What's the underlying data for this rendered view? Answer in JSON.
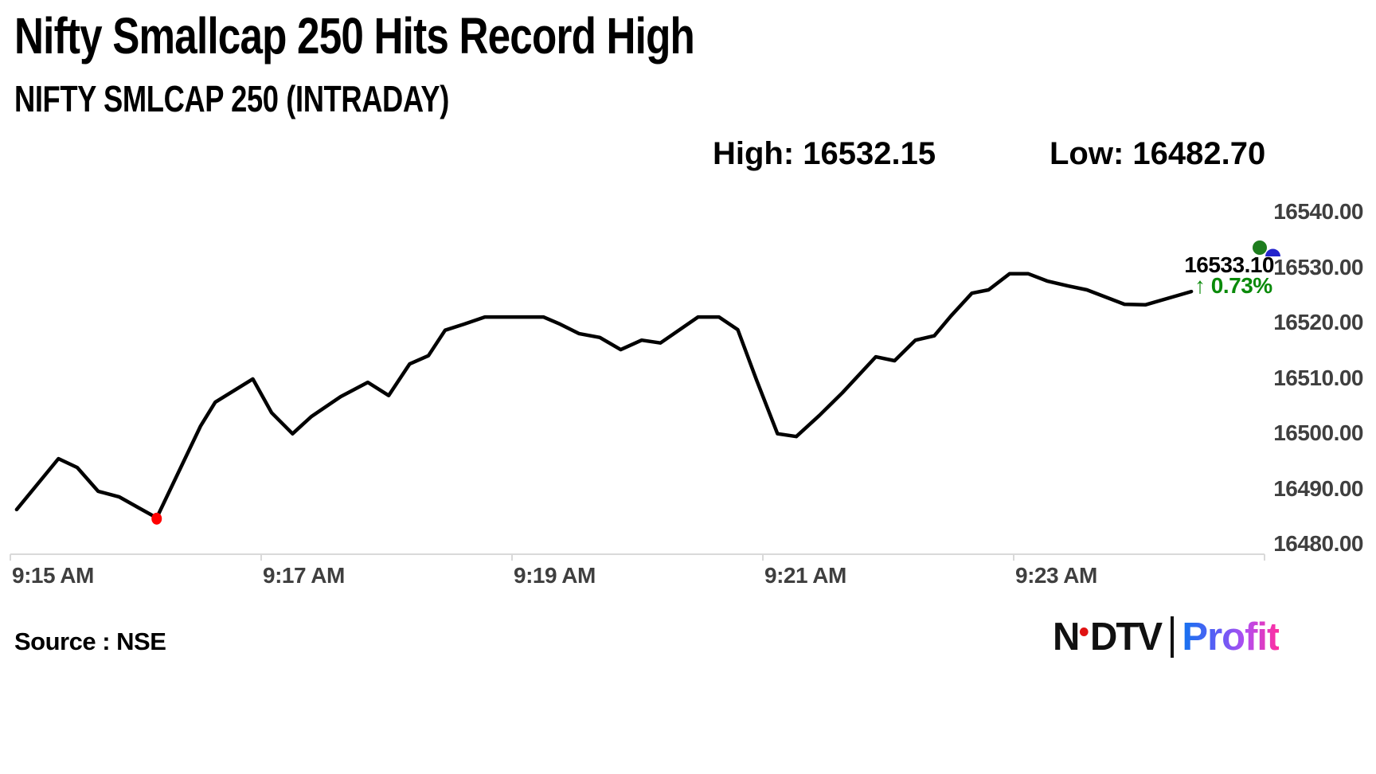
{
  "header": {
    "title": "Nifty Smallcap 250 Hits Record High",
    "subtitle": "NIFTY SMLCAP 250 (INTRADAY)",
    "high_label": "High: 16532.15",
    "low_label": "Low: 16482.70"
  },
  "annotations": {
    "last_price": "16533.10",
    "change_label": "↑ 0.73%"
  },
  "footer": {
    "source": "Source : NSE",
    "logo_n": "N",
    "logo_dtv": "DTV",
    "logo_profit": "Profit"
  },
  "colors": {
    "line": "#000000",
    "axis": "#d9d9d9",
    "tick_text": "#3f3f3f",
    "low_marker": "#ff0000",
    "gain_green": "#0a8a0a",
    "badge_green": "#1e7d1e",
    "badge_blue": "#2323cc",
    "profit_gradient": [
      "#1473ef",
      "#5f5cf5",
      "#b44df0",
      "#ff2d9e"
    ]
  },
  "chart_data": {
    "type": "line",
    "title": "NIFTY SMLCAP 250 (INTRADAY)",
    "high": 16532.15,
    "low": 16482.7,
    "last_price": 16533.1,
    "change_percent": "0.73%",
    "grid": false,
    "legend": false,
    "x_axis": {
      "labels": [
        "9:15 AM",
        "9:17 AM",
        "9:19 AM",
        "9:21 AM",
        "9:23 AM"
      ],
      "interval_minutes": 2,
      "t_unit": "seconds after 9:15 AM"
    },
    "y_axis": {
      "ticks": [
        16540,
        16530,
        16520,
        16510,
        16500,
        16490,
        16480
      ],
      "tick_labels": [
        "16540.00",
        "16530.00",
        "16520.00",
        "16510.00",
        "16500.00",
        "16490.00",
        "16480.00"
      ],
      "min": 16470,
      "max": 16545,
      "side": "right"
    },
    "series": [
      {
        "name": "NIFTY SMLCAP 250",
        "color": "#000000",
        "points": [
          [
            3,
            16486.2
          ],
          [
            23,
            16495.4
          ],
          [
            32,
            16493.8
          ],
          [
            42,
            16489.5
          ],
          [
            52,
            16488.5
          ],
          [
            61,
            16486.6
          ],
          [
            70,
            16484.7
          ],
          [
            91,
            16501.3
          ],
          [
            98,
            16505.6
          ],
          [
            116,
            16509.8
          ],
          [
            125,
            16503.7
          ],
          [
            135,
            16499.9
          ],
          [
            144,
            16503.0
          ],
          [
            158,
            16506.6
          ],
          [
            171,
            16509.2
          ],
          [
            181,
            16506.8
          ],
          [
            191,
            16512.5
          ],
          [
            200,
            16514.0
          ],
          [
            208,
            16518.6
          ],
          [
            217,
            16519.7
          ],
          [
            227,
            16521.0
          ],
          [
            255,
            16521.0
          ],
          [
            263,
            16519.7
          ],
          [
            272,
            16518.0
          ],
          [
            282,
            16517.3
          ],
          [
            292,
            16515.1
          ],
          [
            302,
            16516.8
          ],
          [
            311,
            16516.3
          ],
          [
            329,
            16521.0
          ],
          [
            339,
            16521.0
          ],
          [
            348,
            16518.7
          ],
          [
            357,
            16509.6
          ],
          [
            367,
            16499.9
          ],
          [
            376,
            16499.4
          ],
          [
            387,
            16503.2
          ],
          [
            398,
            16507.3
          ],
          [
            414,
            16513.8
          ],
          [
            423,
            16513.1
          ],
          [
            433,
            16516.8
          ],
          [
            442,
            16517.6
          ],
          [
            450,
            16521.2
          ],
          [
            460,
            16525.3
          ],
          [
            468,
            16525.9
          ],
          [
            478,
            16528.8
          ],
          [
            487,
            16528.8
          ],
          [
            496,
            16527.5
          ],
          [
            506,
            16526.6
          ],
          [
            515,
            16525.9
          ],
          [
            533,
            16523.3
          ],
          [
            543,
            16523.2
          ],
          [
            565,
            16525.6
          ]
        ]
      }
    ],
    "markers": {
      "low_point_color": "#ff0000",
      "low_point_at_seconds": 70,
      "last_price_badge_colors": [
        "#1e7d1e",
        "#2323cc"
      ]
    }
  }
}
